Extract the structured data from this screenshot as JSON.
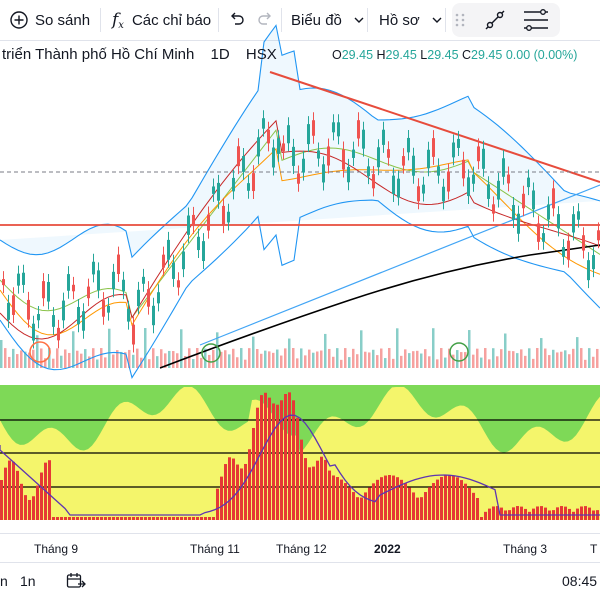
{
  "toolbar": {
    "compare_label": "So sánh",
    "indicators_label": "Các chỉ báo",
    "indicators_icon": "fx-icon",
    "chart_type_label": "Biểu đồ",
    "profile_label": "Hồ sơ"
  },
  "legend": {
    "symbol_name": "triển Thành phố Hồ Chí Minh",
    "interval": "1D",
    "exchange": "HSX",
    "o_key": "O",
    "o_val": "29.45",
    "h_key": "H",
    "h_val": "29.45",
    "l_key": "L",
    "l_val": "29.45",
    "c_key": "C",
    "c_val": "29.45",
    "change": "0.00 (0.00%)"
  },
  "time_axis": {
    "labels": [
      "Tháng 9",
      "Tháng 11",
      "Tháng 12",
      "2022",
      "Tháng 3",
      "T"
    ]
  },
  "bottom_bar": {
    "range_1": "n",
    "range_2": "1n",
    "clock": "08:45"
  },
  "colors": {
    "up": "#26a69a",
    "down": "#ef5350",
    "trendline": "#e74c3c",
    "bollinger": "#2196f3",
    "ma_long": "#000000",
    "osc_green": "#7ed957",
    "osc_yellow": "#f4f56b"
  }
}
